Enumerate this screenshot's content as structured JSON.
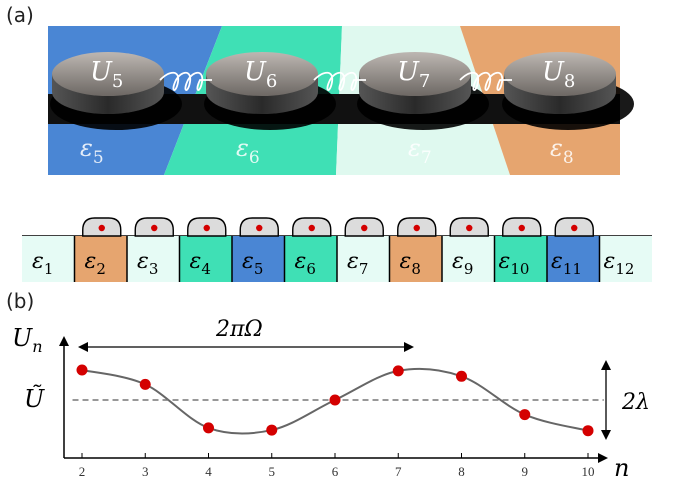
{
  "panel_a": {
    "label": "(a)",
    "stripes": [
      {
        "color": "#4a86d4"
      },
      {
        "color": "#3fe0b5"
      },
      {
        "color": "#dff9ef"
      },
      {
        "color": "#e6a56f"
      }
    ],
    "disks": [
      {
        "label_base": "U",
        "label_sub": "5"
      },
      {
        "label_base": "U",
        "label_sub": "6"
      },
      {
        "label_base": "U",
        "label_sub": "7"
      },
      {
        "label_base": "U",
        "label_sub": "8"
      }
    ],
    "stripe_labels": [
      {
        "base": "ε",
        "sub": "5"
      },
      {
        "base": "ε",
        "sub": "6"
      },
      {
        "base": "ε",
        "sub": "7"
      },
      {
        "base": "ε",
        "sub": "8"
      }
    ]
  },
  "lattice": {
    "cells": [
      {
        "base": "ε",
        "sub": "1",
        "color": "#e6fbf5"
      },
      {
        "base": "ε",
        "sub": "2",
        "color": "#e6a56f"
      },
      {
        "base": "ε",
        "sub": "3",
        "color": "#e6fbf5"
      },
      {
        "base": "ε",
        "sub": "4",
        "color": "#3fe0b5"
      },
      {
        "base": "ε",
        "sub": "5",
        "color": "#4a86d4"
      },
      {
        "base": "ε",
        "sub": "6",
        "color": "#3fe0b5"
      },
      {
        "base": "ε",
        "sub": "7",
        "color": "#e6fbf5"
      },
      {
        "base": "ε",
        "sub": "8",
        "color": "#e6a56f"
      },
      {
        "base": "ε",
        "sub": "9",
        "color": "#e6fbf5"
      },
      {
        "base": "ε",
        "sub": "10",
        "color": "#3fe0b5"
      },
      {
        "base": "ε",
        "sub": "11",
        "color": "#4a86d4"
      },
      {
        "base": "ε",
        "sub": "12",
        "color": "#e6fbf5"
      }
    ],
    "dot_color": "#d40000"
  },
  "panel_b": {
    "label": "(b)",
    "y_label_base": "U",
    "y_label_sub": "n",
    "mean_label": "Ũ",
    "x_label": "n",
    "period_label": "2πΩ",
    "amplitude_label": "2λ"
  },
  "chart_data": {
    "type": "scatter",
    "x": [
      2,
      3,
      4,
      5,
      6,
      7,
      8,
      9,
      10
    ],
    "y": [
      1.0,
      0.52,
      -0.9,
      -0.97,
      0.0,
      0.97,
      0.79,
      -0.47,
      -0.99
    ],
    "mean": 0,
    "xlim": [
      1.6,
      10.4
    ],
    "ylim": [
      -1.25,
      1.55
    ],
    "xticks": [
      "2",
      "3",
      "4",
      "5",
      "6",
      "7",
      "8",
      "9",
      "10"
    ],
    "curve": {
      "type": "cosine",
      "period": 5.2,
      "phase_x": 2,
      "amplitude": 1
    },
    "point_color": "#d40000",
    "curve_color": "#666666",
    "mean_line_color": "#777777"
  }
}
